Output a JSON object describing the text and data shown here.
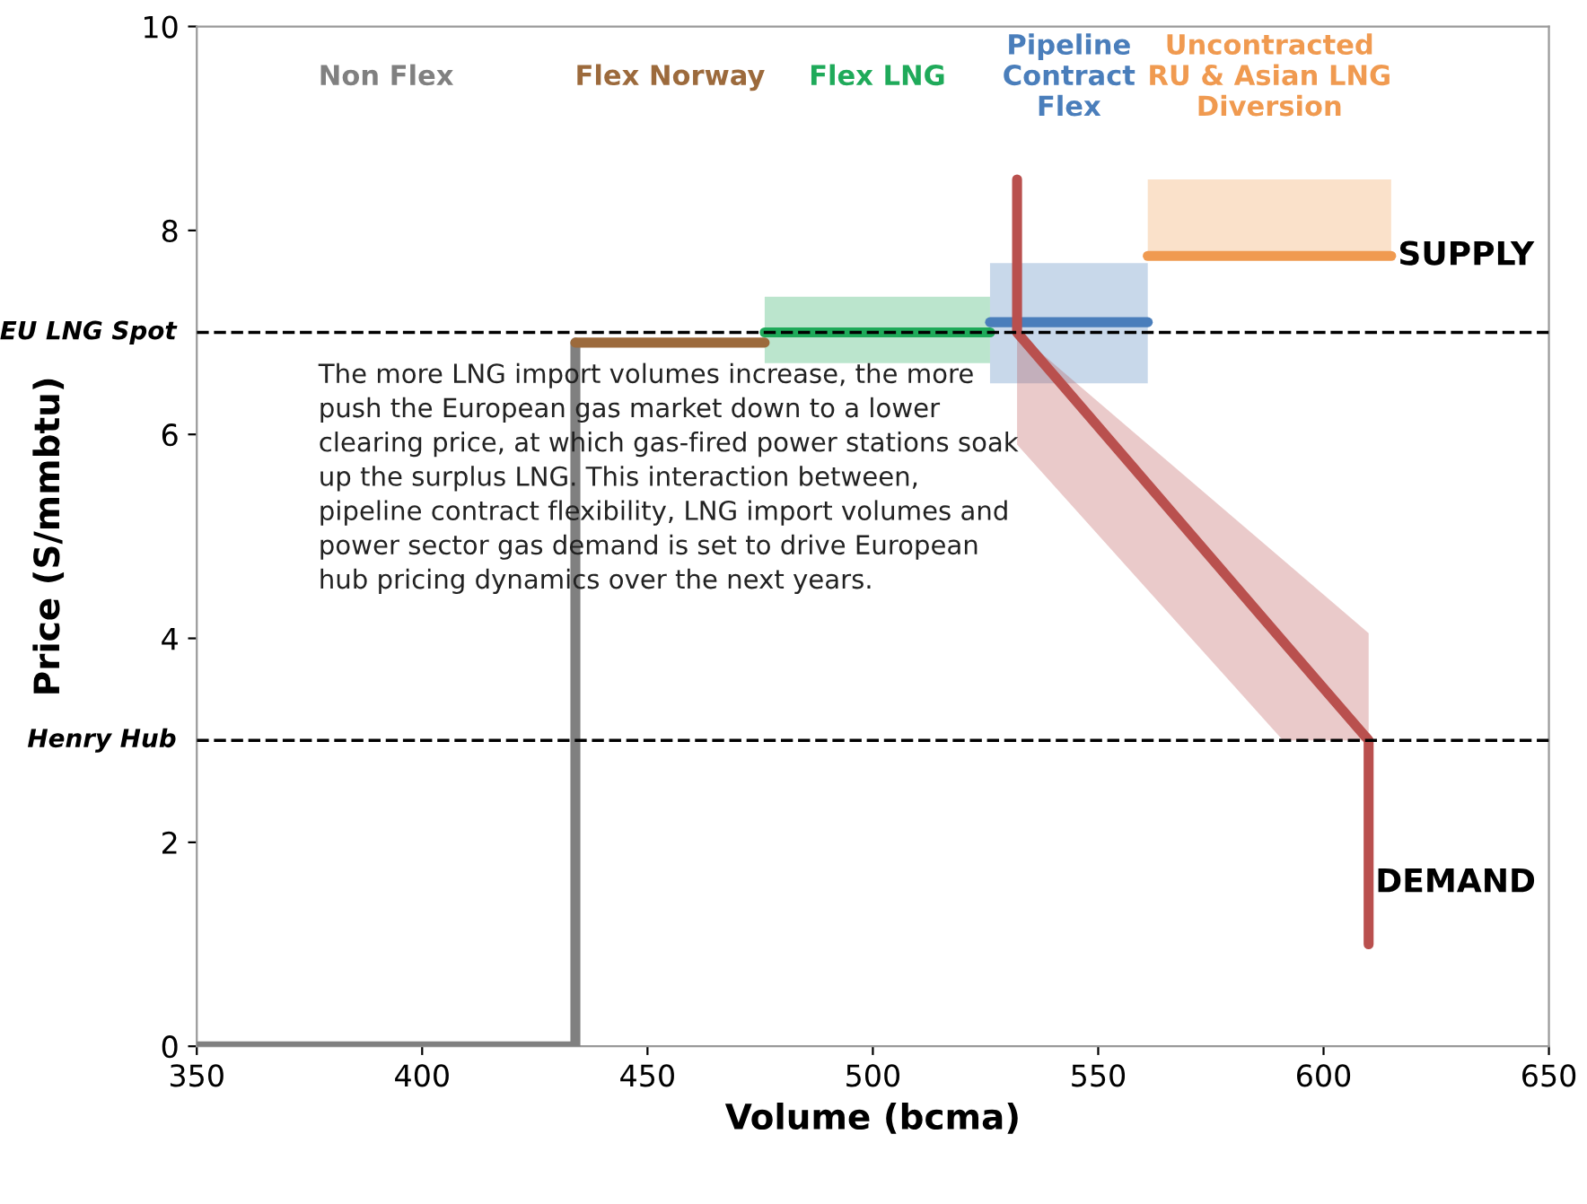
{
  "chart_data": {
    "type": "line",
    "xlabel": "Volume (bcma)",
    "ylabel": "Price (S/mmbtu)",
    "xlim": [
      350,
      650
    ],
    "xticks": [
      350,
      400,
      450,
      500,
      550,
      600,
      650
    ],
    "ylim": [
      0,
      10
    ],
    "yticks": [
      0,
      2,
      4,
      6,
      8,
      10
    ],
    "grid": false,
    "legend": false,
    "series": [
      {
        "name": "Non Flex",
        "color": "#808080",
        "x": [
          350,
          434,
          434
        ],
        "values": [
          0,
          0,
          6.9
        ]
      },
      {
        "name": "Flex Norway",
        "color": "#9c6a3c",
        "x": [
          434,
          476
        ],
        "values": [
          6.9,
          6.9
        ]
      },
      {
        "name": "Flex LNG",
        "color": "#1faa5a",
        "x": [
          476,
          526
        ],
        "values": [
          7.0,
          7.0
        ],
        "lower": [
          6.7,
          6.7
        ],
        "upper": [
          7.35,
          7.35
        ]
      },
      {
        "name": "Pipeline\nContract\nFlex",
        "color": "#4a7ebb",
        "x": [
          526,
          561
        ],
        "values": [
          7.1,
          7.1
        ],
        "lower": [
          6.5,
          6.5
        ],
        "upper": [
          7.68,
          7.68
        ]
      },
      {
        "name": "Uncontracted\nRU & Asian LNG\nDiversion",
        "color": "#f09a50",
        "x": [
          561,
          615
        ],
        "values": [
          7.75,
          7.75
        ],
        "lower": [
          7.75,
          7.75
        ],
        "upper": [
          8.5,
          8.5
        ]
      },
      {
        "color": "#b9504e",
        "x": [
          532,
          532,
          591,
          610,
          610
        ],
        "values": [
          8.5,
          7.0,
          3.97,
          3.0,
          1.0
        ],
        "lower": [
          null,
          5.9,
          3.0,
          3.0,
          null
        ],
        "upper": [
          null,
          7.0,
          4.77,
          4.05,
          null
        ]
      }
    ],
    "ref_lines": [
      {
        "axis": "y",
        "value": 7.0,
        "label": "EU LNG Spot"
      },
      {
        "axis": "y",
        "value": 3.0,
        "label": "Henry Hub"
      }
    ],
    "annotations": [
      {
        "text": "SUPPLY",
        "x": 615,
        "y": 7.75
      },
      {
        "text": "DEMAND",
        "x": 610,
        "y": 1.6
      },
      "The more LNG import volumes increase, the more\npush the European gas market down to a lower\nclearing price, at which gas-fired power stations soak\nup the surplus LNG. This interaction between,\npipeline contract flexibility, LNG import volumes and\npower sector gas demand is set to drive European\nhub pricing dynamics over the next years."
    ]
  }
}
